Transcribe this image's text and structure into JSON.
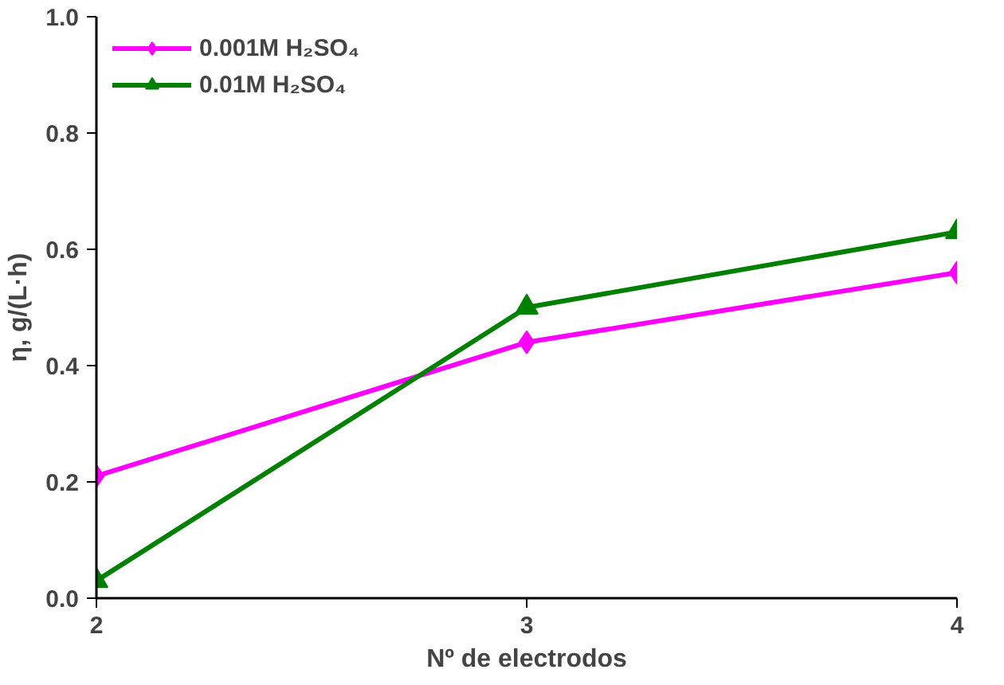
{
  "chart_data": {
    "type": "line",
    "xlabel": "Nº de electrodos",
    "ylabel": "η, g/(L·h)",
    "x": [
      2,
      3,
      4
    ],
    "series": [
      {
        "name": "0.001M H₂SO₄",
        "color": "#ff00ff",
        "values": [
          0.21,
          0.44,
          0.56
        ],
        "marker": "diamond"
      },
      {
        "name": "0.01M H₂SO₄",
        "color": "#008000",
        "values": [
          0.03,
          0.5,
          0.63
        ],
        "marker": "triangle"
      }
    ],
    "xlim": [
      2,
      4
    ],
    "xticks": [
      2,
      3,
      4
    ],
    "ylim": [
      0,
      1
    ],
    "yticks": [
      {
        "value": 0,
        "label": "0.0"
      },
      {
        "value": 0.2,
        "label": "0.2"
      },
      {
        "value": 0.4,
        "label": "0.4"
      },
      {
        "value": 0.6,
        "label": "0.6"
      },
      {
        "value": 0.8,
        "label": "0.8"
      },
      {
        "value": 1,
        "label": "1.0"
      }
    ],
    "grid": false,
    "legend": "top left",
    "line_style": "solid"
  }
}
